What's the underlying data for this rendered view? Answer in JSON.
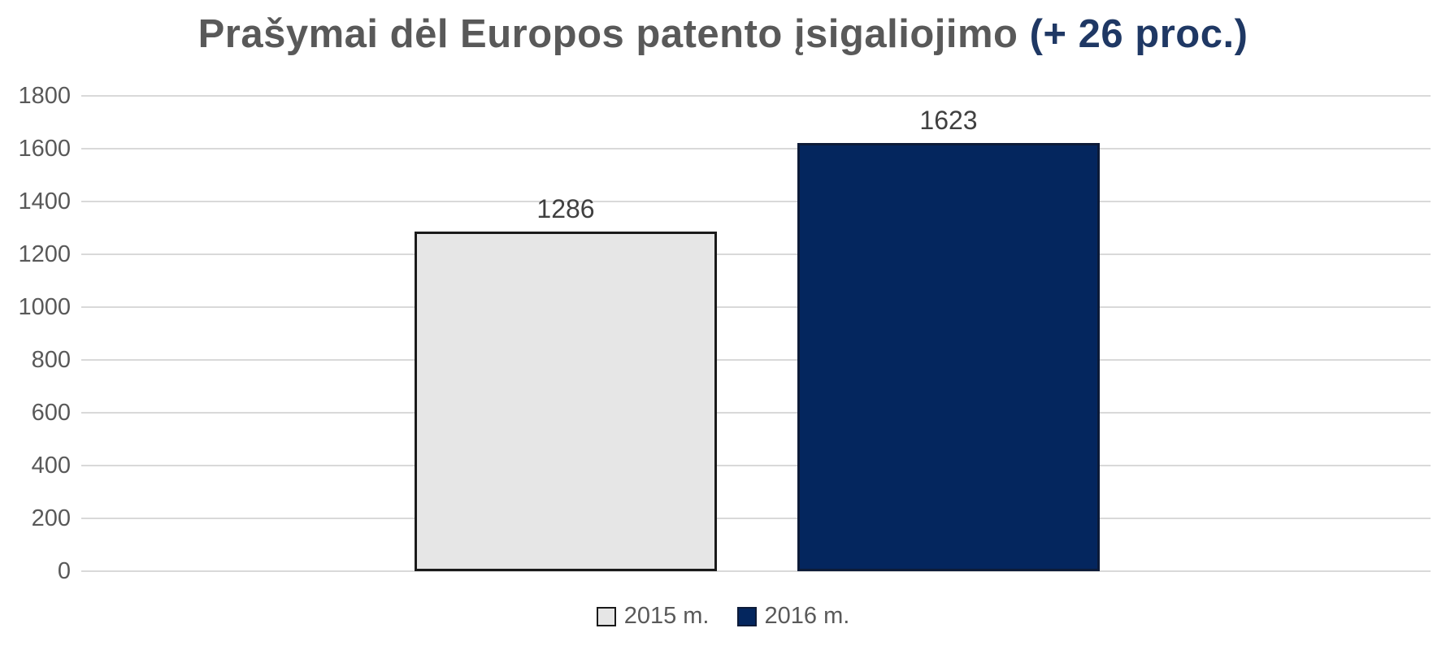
{
  "chart": {
    "title_main": "Prašymai dėl Europos patento įsigaliojimo ",
    "title_accent": "(+ 26 proc.)"
  },
  "chart_data": {
    "type": "bar",
    "title": "Prašymai dėl Europos patento įsigaliojimo (+ 26 proc.)",
    "categories": [
      "2015 m.",
      "2016 m."
    ],
    "values": [
      1286,
      1623
    ],
    "data_labels": [
      "1286",
      "1623"
    ],
    "xlabel": "",
    "ylabel": "",
    "ylim": [
      0,
      1800
    ],
    "y_tick_step": 200,
    "y_tick_labels": [
      "0",
      "200",
      "400",
      "600",
      "800",
      "1000",
      "1200",
      "1400",
      "1600",
      "1800"
    ],
    "grid": true,
    "legend_position": "bottom",
    "bar_colors": [
      "#E6E6E6",
      "#04265E"
    ],
    "bar_border_colors": [
      "#1A1A1A",
      "#0D1B38"
    ],
    "colors": {
      "title_gray": "#595959",
      "title_accent": "#1F3864",
      "tick_label": "#595959",
      "data_label": "#404040",
      "gridline": "#D9D9D9",
      "background": "#FFFFFF"
    }
  }
}
